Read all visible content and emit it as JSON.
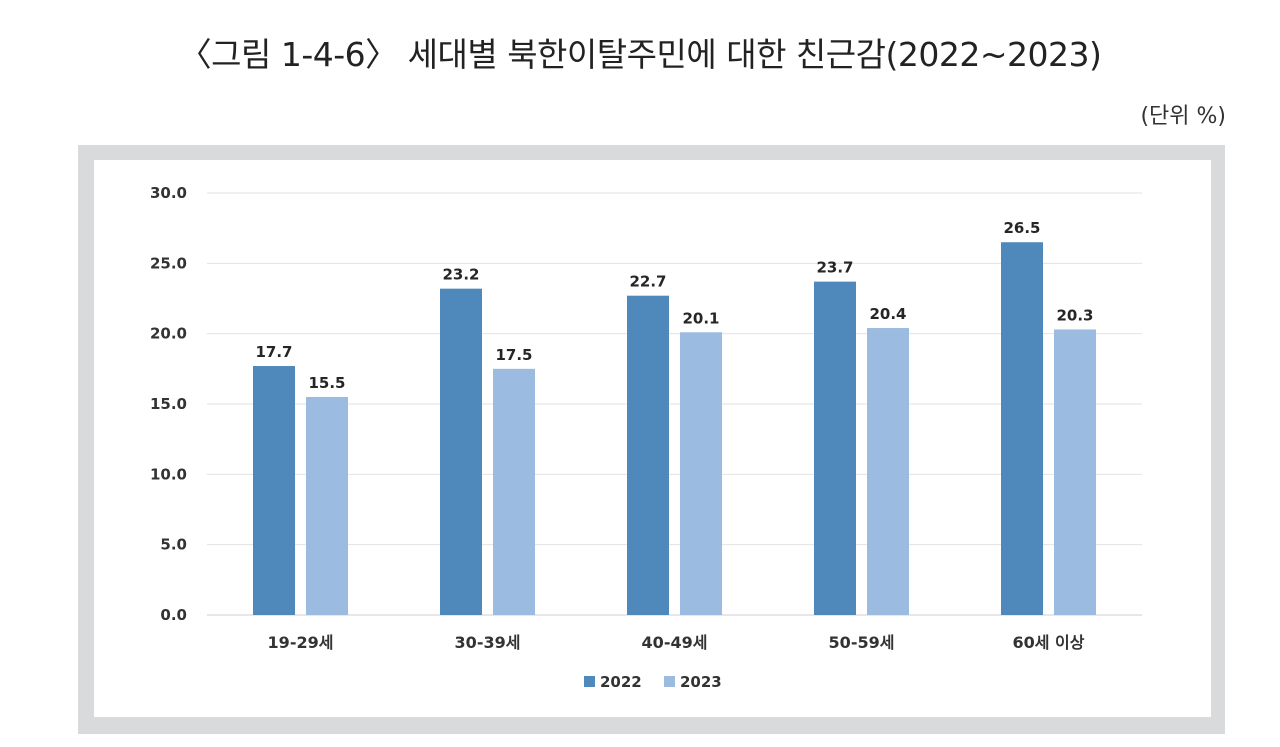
{
  "figure": {
    "title": "〈그림 1-4-6〉 세대별 북한이탈주민에 대한 친근감(2022~2023)",
    "unit": "(단위 %)"
  },
  "chart_data": {
    "type": "bar",
    "title": "〈그림 1-4-6〉 세대별 북한이탈주민에 대한 친근감(2022~2023)",
    "xlabel": "",
    "ylabel": "",
    "ylim": [
      0,
      30
    ],
    "yticks": [
      0,
      5,
      10,
      15,
      20,
      25,
      30
    ],
    "ytick_labels": [
      "0.0",
      "5.0",
      "10.0",
      "15.0",
      "20.0",
      "25.0",
      "30.0"
    ],
    "grid": true,
    "legend_position": "bottom",
    "categories": [
      "19-29세",
      "30-39세",
      "40-49세",
      "50-59세",
      "60세 이상"
    ],
    "series": [
      {
        "name": "2022",
        "color": "#4f89bb",
        "values": [
          17.7,
          23.2,
          22.7,
          23.7,
          26.5
        ]
      },
      {
        "name": "2023",
        "color": "#9bbbe0",
        "values": [
          15.5,
          17.5,
          20.1,
          20.4,
          20.3
        ]
      }
    ]
  }
}
